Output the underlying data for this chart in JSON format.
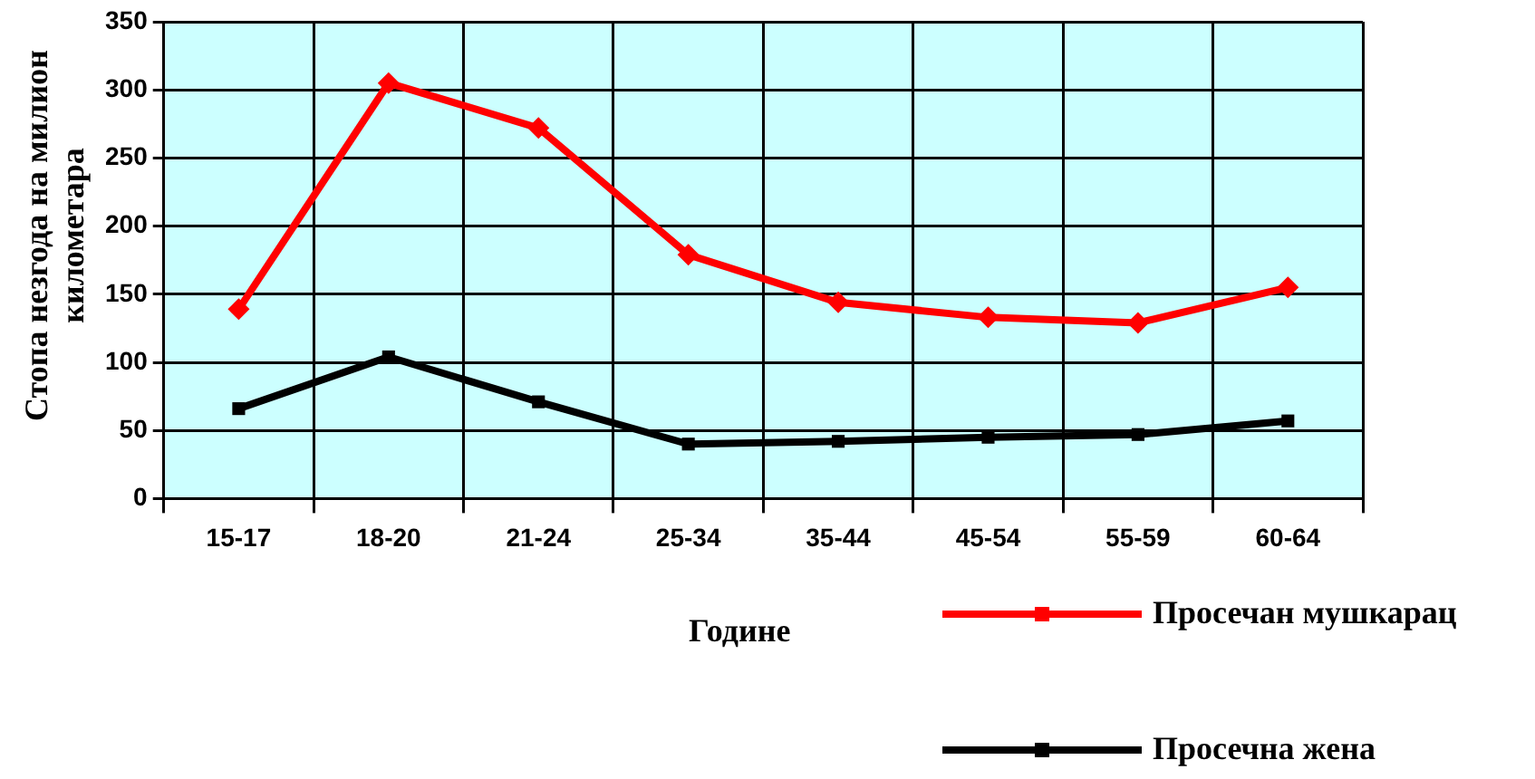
{
  "chart_data": {
    "type": "line",
    "xlabel": "Године",
    "ylabel": "Стопа незгода на милион километара",
    "categories": [
      "15-17",
      "18-20",
      "21-24",
      "25-34",
      "35-44",
      "45-54",
      "55-59",
      "60-64"
    ],
    "series": [
      {
        "name": "Просечан мушкарац",
        "color": "#ff0000",
        "marker": "diamond",
        "values": [
          139,
          305,
          272,
          179,
          144,
          133,
          129,
          155
        ]
      },
      {
        "name": "Просечна жена",
        "color": "#000000",
        "marker": "square",
        "values": [
          66,
          104,
          71,
          40,
          42,
          45,
          47,
          57
        ]
      }
    ],
    "ylim": [
      0,
      350
    ],
    "yticks": [
      0,
      50,
      100,
      150,
      200,
      250,
      300,
      350
    ],
    "grid": true,
    "legend": "bottom right",
    "line_style": "solid"
  }
}
